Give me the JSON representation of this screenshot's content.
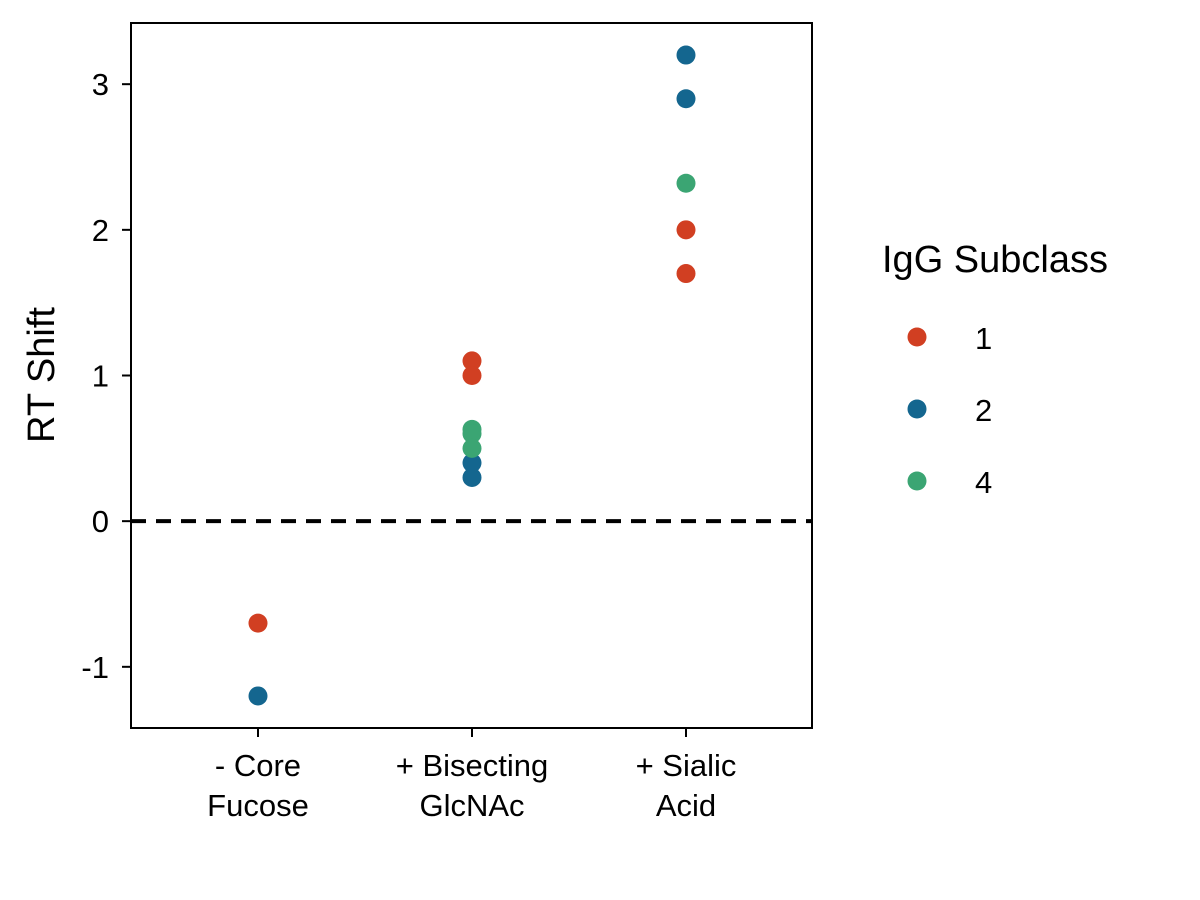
{
  "chart_data": {
    "type": "scatter",
    "ylabel": "RT Shift",
    "xlabel": "",
    "categories": [
      [
        "- Core",
        "Fucose"
      ],
      [
        "+ Bisecting",
        "GlcNAc"
      ],
      [
        "+ Sialic",
        "Acid"
      ]
    ],
    "ylim": [
      -1.42,
      3.42
    ],
    "yticks": [
      -1,
      0,
      1,
      2,
      3
    ],
    "ytick_labels": [
      "-1",
      "0",
      "1",
      "2",
      "3"
    ],
    "reference_line": {
      "y": 0,
      "style": "dashed"
    },
    "grid": false,
    "legend": {
      "title": "IgG Subclass",
      "placement": "right"
    },
    "series": [
      {
        "name": "1",
        "color": "#D13F22",
        "points": [
          {
            "category": "- Core Fucose",
            "y": -0.7
          },
          {
            "category": "+ Bisecting GlcNAc",
            "y": 1.1
          },
          {
            "category": "+ Bisecting GlcNAc",
            "y": 1.0
          },
          {
            "category": "+ Sialic Acid",
            "y": 2.0
          },
          {
            "category": "+ Sialic Acid",
            "y": 1.7
          }
        ]
      },
      {
        "name": "2",
        "color": "#14668F",
        "points": [
          {
            "category": "- Core Fucose",
            "y": -1.2
          },
          {
            "category": "+ Bisecting GlcNAc",
            "y": 0.4
          },
          {
            "category": "+ Bisecting GlcNAc",
            "y": 0.3
          },
          {
            "category": "+ Sialic Acid",
            "y": 3.2
          },
          {
            "category": "+ Sialic Acid",
            "y": 2.9
          }
        ]
      },
      {
        "name": "4",
        "color": "#3BA573",
        "points": [
          {
            "category": "+ Bisecting GlcNAc",
            "y": 0.63
          },
          {
            "category": "+ Bisecting GlcNAc",
            "y": 0.6
          },
          {
            "category": "+ Bisecting GlcNAc",
            "y": 0.5
          },
          {
            "category": "+ Sialic Acid",
            "y": 2.32
          }
        ]
      }
    ]
  }
}
